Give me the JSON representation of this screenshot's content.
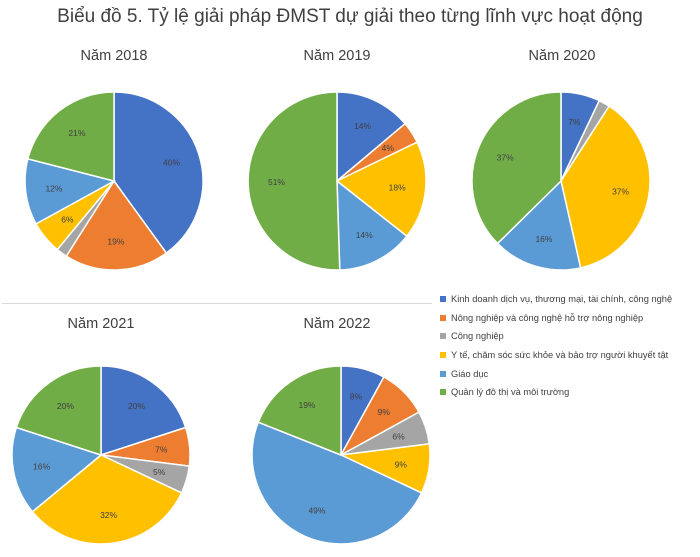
{
  "title": "Biểu đồ 5. Tỷ lệ giải pháp ĐMST dự giải theo từng lĩnh vực hoạt động",
  "legend": [
    {
      "label": "Kinh doanh dịch vụ, thương mại, tài chính, công nghệ",
      "color": "#4472C4"
    },
    {
      "label": "Nông nghiệp và công nghệ hỗ trợ nông nghiệp",
      "color": "#ED7D31"
    },
    {
      "label": "Công nghiệp",
      "color": "#A5A5A5"
    },
    {
      "label": "Y tế, chăm sóc sức khỏe và bảo trợ người khuyết tật",
      "color": "#FFC000"
    },
    {
      "label": "Giáo dục",
      "color": "#5B9BD5"
    },
    {
      "label": "Quản lý đô thị và môi trường",
      "color": "#70AD47"
    }
  ],
  "chart_data": [
    {
      "type": "pie",
      "title": "Năm 2018",
      "values": [
        40,
        19,
        2,
        6,
        12,
        21
      ],
      "labels": [
        "40%",
        "19%",
        "",
        "6%",
        "12%",
        "21%"
      ]
    },
    {
      "type": "pie",
      "title": "Năm 2019",
      "values": [
        14,
        4,
        0,
        18,
        14,
        51
      ],
      "labels": [
        "14%",
        "4%",
        "",
        "18%",
        "14%",
        "51%"
      ]
    },
    {
      "type": "pie",
      "title": "Năm 2020",
      "values": [
        7,
        0,
        2,
        37,
        16,
        37
      ],
      "labels": [
        "7%",
        "",
        "",
        "37%",
        "16%",
        "37%"
      ]
    },
    {
      "type": "pie",
      "title": "Năm 2021",
      "values": [
        20,
        7,
        5,
        32,
        16,
        20
      ],
      "labels": [
        "20%",
        "7%",
        "5%",
        "32%",
        "16%",
        "20%"
      ]
    },
    {
      "type": "pie",
      "title": "Năm 2022",
      "values": [
        8,
        9,
        6,
        9,
        49,
        19
      ],
      "labels": [
        "8%",
        "9%",
        "6%",
        "9%",
        "49%",
        "19%"
      ]
    }
  ]
}
